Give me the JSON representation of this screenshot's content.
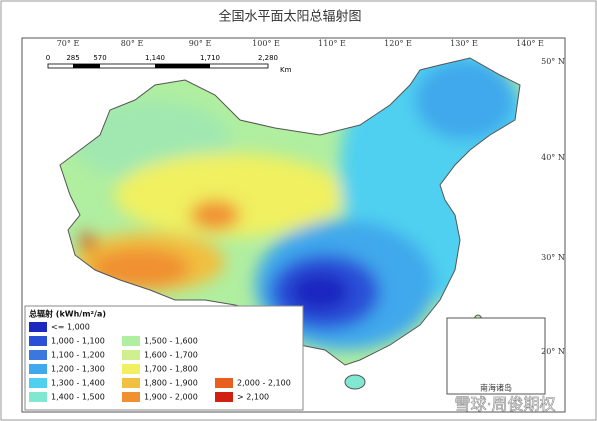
{
  "title": "全国水平面太阳总辐射图",
  "longitudes": [
    "70°  E",
    "80°  E",
    "90°  E",
    "100°  E",
    "110°  E",
    "120°  E",
    "130°  E",
    "140°  E"
  ],
  "latitudes": [
    "50°  N",
    "40°  N",
    "30°  N",
    "20°  N"
  ],
  "scale_bar": {
    "ticks": [
      "0",
      "285",
      "570",
      "1,140",
      "1,710",
      "2,280"
    ],
    "unit": "Km"
  },
  "legend": {
    "title": "总辐射 (kWh/m²/a)",
    "entries": [
      {
        "label": "<= 1,000",
        "color": "#1a28c0"
      },
      {
        "label": "1,000 - 1,100",
        "color": "#2a50d8"
      },
      {
        "label": "1,100 - 1,200",
        "color": "#3a78e0"
      },
      {
        "label": "1,200 - 1,300",
        "color": "#40a8ec"
      },
      {
        "label": "1,300 - 1,400",
        "color": "#50d0f0"
      },
      {
        "label": "1,400 - 1,500",
        "color": "#80e8d0"
      },
      {
        "label": "1,500 - 1,600",
        "color": "#b0eea0"
      },
      {
        "label": "1,600 - 1,700",
        "color": "#d0f090"
      },
      {
        "label": "1,700 - 1,800",
        "color": "#f0f060"
      },
      {
        "label": "1,800 - 1,900",
        "color": "#f0c040"
      },
      {
        "label": "1,900 - 2,000",
        "color": "#f09030"
      },
      {
        "label": "2,000 - 2,100",
        "color": "#e86020"
      },
      {
        "label": "> 2,100",
        "color": "#d02010"
      }
    ]
  },
  "inset_label": "南海诸岛",
  "watermark": "雪球·周俊期权"
}
